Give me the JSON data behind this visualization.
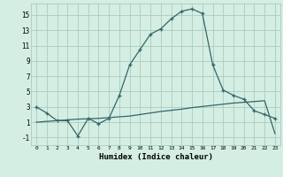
{
  "x": [
    0,
    1,
    2,
    3,
    4,
    5,
    6,
    7,
    8,
    9,
    10,
    11,
    12,
    13,
    14,
    15,
    16,
    17,
    18,
    19,
    20,
    21,
    22,
    23
  ],
  "humidex": [
    3.0,
    2.2,
    1.2,
    1.2,
    -0.8,
    1.5,
    0.8,
    1.5,
    4.5,
    8.5,
    10.5,
    12.5,
    13.2,
    14.5,
    15.5,
    15.8,
    15.2,
    8.5,
    5.2,
    4.5,
    4.0,
    2.5,
    2.0,
    1.5
  ],
  "straight": [
    1.0,
    1.1,
    1.2,
    1.3,
    1.4,
    1.45,
    1.5,
    1.6,
    1.7,
    1.8,
    2.0,
    2.2,
    2.4,
    2.55,
    2.7,
    2.9,
    3.05,
    3.2,
    3.35,
    3.5,
    3.6,
    3.7,
    3.8,
    -0.5
  ],
  "line_color": "#336666",
  "bg_color": "#d4eee4",
  "grid_color": "#aaccbb",
  "ylim": [
    -2.0,
    16.5
  ],
  "yticks": [
    -1,
    1,
    3,
    5,
    7,
    9,
    11,
    13,
    15
  ],
  "xlim": [
    -0.5,
    23.5
  ],
  "xlabel": "Humidex (Indice chaleur)"
}
